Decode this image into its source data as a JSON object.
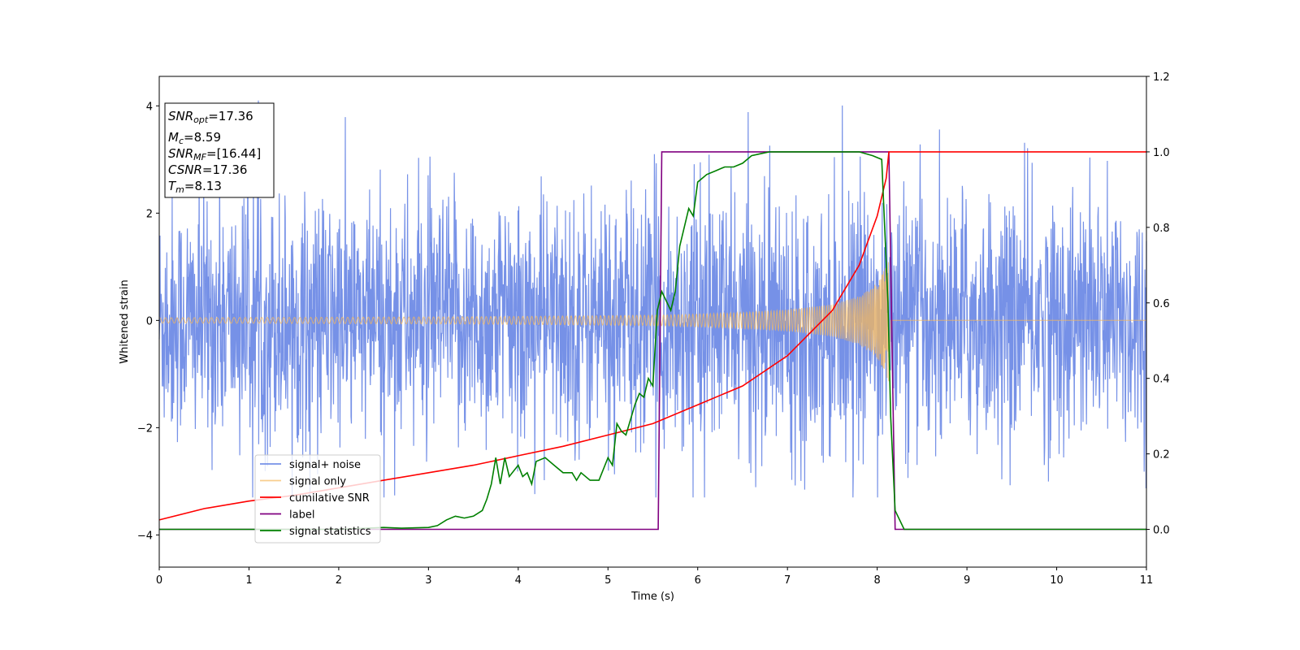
{
  "chart_data": {
    "type": "line",
    "xlabel": "Time (s)",
    "ylabel": "Whitened strain",
    "xlim": [
      0,
      11
    ],
    "ylim": [
      -4.6,
      4.55
    ],
    "y2lim": [
      -0.1,
      1.2
    ],
    "x_ticks": [
      0,
      1,
      2,
      3,
      4,
      5,
      6,
      7,
      8,
      9,
      10,
      11
    ],
    "y_ticks": [
      -4,
      -2,
      0,
      2,
      4
    ],
    "y2_ticks": [
      0.0,
      0.2,
      0.4,
      0.6,
      0.8,
      1.0,
      1.2
    ],
    "grid": false,
    "legend_position": "lower-left",
    "colors": {
      "noise": "#6f8be6",
      "signal": "#f5b85c",
      "csnr": "#ff0000",
      "label": "#800080",
      "stat": "#008000"
    },
    "series": [
      {
        "name": "signal+ noise",
        "axis": "left",
        "description_values": "whitened strain noise with embedded chirp, approx. amplitude range -3.3 to 4.1",
        "envelope": {
          "x": [
            0,
            1,
            2,
            3,
            4,
            5,
            6,
            7,
            8,
            9,
            10,
            11
          ],
          "typical_max": [
            2.6,
            2.6,
            2.5,
            2.5,
            2.5,
            2.6,
            2.6,
            2.7,
            2.6,
            2.5,
            2.6,
            2.6
          ],
          "typical_min": [
            -2.4,
            -2.5,
            -2.6,
            -2.5,
            -2.5,
            -2.6,
            -2.6,
            -2.6,
            -2.5,
            -2.5,
            -2.6,
            -2.6
          ]
        }
      },
      {
        "name": "signal only",
        "axis": "left",
        "envelope": {
          "x": [
            0,
            1,
            2,
            3,
            4,
            5,
            5.6,
            6,
            6.5,
            7,
            7.5,
            7.8,
            8.0,
            8.1,
            8.13
          ],
          "amplitude": [
            0.05,
            0.055,
            0.06,
            0.065,
            0.075,
            0.09,
            0.1,
            0.12,
            0.15,
            0.2,
            0.3,
            0.45,
            0.7,
            1.0,
            1.25
          ]
        }
      },
      {
        "name": "cumilative SNR",
        "axis": "right",
        "x": [
          0,
          0.5,
          1,
          1.5,
          2,
          2.5,
          3,
          3.5,
          4,
          4.5,
          5,
          5.5,
          6,
          6.5,
          7,
          7.5,
          7.8,
          8.0,
          8.1,
          8.13,
          8.2,
          9,
          10,
          11
        ],
        "values": [
          0.025,
          0.055,
          0.075,
          0.09,
          0.11,
          0.13,
          0.15,
          0.17,
          0.195,
          0.22,
          0.25,
          0.28,
          0.33,
          0.38,
          0.46,
          0.58,
          0.7,
          0.83,
          0.93,
          1.0,
          1.0,
          1.0,
          1.0,
          1.0
        ]
      },
      {
        "name": "label",
        "axis": "right",
        "x": [
          0,
          5.56,
          5.6,
          8.13,
          8.2,
          11
        ],
        "values": [
          0,
          0,
          1,
          1,
          0,
          0
        ]
      },
      {
        "name": "signal statistics",
        "axis": "right",
        "x": [
          0,
          1,
          2,
          2.5,
          2.7,
          3,
          3.1,
          3.2,
          3.3,
          3.4,
          3.5,
          3.6,
          3.65,
          3.7,
          3.75,
          3.8,
          3.85,
          3.9,
          4.0,
          4.05,
          4.1,
          4.15,
          4.2,
          4.3,
          4.4,
          4.5,
          4.6,
          4.65,
          4.7,
          4.8,
          4.9,
          5.0,
          5.05,
          5.1,
          5.15,
          5.2,
          5.3,
          5.35,
          5.4,
          5.45,
          5.5,
          5.55,
          5.6,
          5.7,
          5.75,
          5.8,
          5.9,
          5.95,
          6.0,
          6.1,
          6.2,
          6.3,
          6.4,
          6.5,
          6.6,
          6.7,
          6.8,
          6.9,
          7.0,
          7.2,
          7.5,
          7.8,
          7.95,
          8.05,
          8.12,
          8.15,
          8.2,
          8.3,
          9,
          10,
          11
        ],
        "values": [
          0.0,
          0.0,
          0.0,
          0.005,
          0.003,
          0.005,
          0.01,
          0.025,
          0.035,
          0.03,
          0.035,
          0.05,
          0.08,
          0.12,
          0.19,
          0.12,
          0.19,
          0.14,
          0.17,
          0.14,
          0.15,
          0.12,
          0.18,
          0.19,
          0.17,
          0.15,
          0.15,
          0.13,
          0.15,
          0.13,
          0.13,
          0.19,
          0.17,
          0.28,
          0.26,
          0.25,
          0.33,
          0.36,
          0.35,
          0.4,
          0.38,
          0.58,
          0.63,
          0.58,
          0.63,
          0.75,
          0.85,
          0.83,
          0.92,
          0.94,
          0.95,
          0.96,
          0.96,
          0.97,
          0.99,
          0.995,
          1.0,
          1.0,
          1.0,
          1.0,
          1.0,
          1.0,
          0.99,
          0.98,
          0.6,
          0.3,
          0.05,
          0.0,
          0.0,
          0.0,
          0.0
        ]
      }
    ],
    "stats_box": {
      "snr_opt": {
        "main": "SNR",
        "sub": "opt",
        "value": "=17.36"
      },
      "mc": {
        "main": "M",
        "sub": "c",
        "value": "=8.59"
      },
      "snr_mf": {
        "main": "SNR",
        "sub": "MF",
        "value": "=[16.44]"
      },
      "csnr": {
        "main": "CSNR",
        "value": "=17.36"
      },
      "tm": {
        "main": "T",
        "sub": "m",
        "value": "=8.13"
      }
    }
  }
}
